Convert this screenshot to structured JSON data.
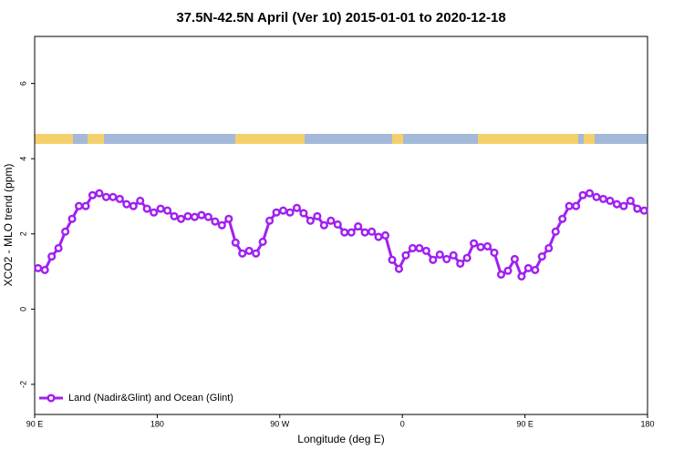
{
  "chart_data": {
    "type": "line",
    "title": "37.5N-42.5N April (Ver 10)   2015-01-01 to 2020-12-18",
    "x_label": "Longitude (deg E)",
    "y_label": "XCO2 - MLO trend (ppm)",
    "xlim": [
      90,
      540
    ],
    "xticks": [
      {
        "value": 90,
        "label": "90 E"
      },
      {
        "value": 180,
        "label": "180"
      },
      {
        "value": 270,
        "label": "90 W"
      },
      {
        "value": 360,
        "label": "0"
      },
      {
        "value": 450,
        "label": "90 E"
      },
      {
        "value": 540,
        "label": "180"
      }
    ],
    "ylim": [
      -2.8,
      7.25
    ],
    "yticks": [
      -2,
      0,
      2,
      4,
      6
    ],
    "legend": "bottom-left",
    "x": [
      92.5,
      97.5,
      102.5,
      107.5,
      112.5,
      117.5,
      122.5,
      127.5,
      132.5,
      137.5,
      142.5,
      147.5,
      152.5,
      157.5,
      162.5,
      167.5,
      172.5,
      177.5,
      182.5,
      187.5,
      192.5,
      197.5,
      202.5,
      207.5,
      212.5,
      217.5,
      222.5,
      227.5,
      232.5,
      237.5,
      242.5,
      247.5,
      252.5,
      257.5,
      262.5,
      267.5,
      272.5,
      277.5,
      282.5,
      287.5,
      292.5,
      297.5,
      302.5,
      307.5,
      312.5,
      317.5,
      322.5,
      327.5,
      332.5,
      337.5,
      342.5,
      347.5,
      352.5,
      357.5,
      362.5,
      367.5,
      372.5,
      377.5,
      382.5,
      387.5,
      392.5,
      397.5,
      402.5,
      407.5,
      412.5,
      417.5,
      422.5,
      427.5,
      432.5,
      437.5,
      442.5,
      447.5,
      452.5,
      457.5,
      462.5,
      467.5,
      472.5,
      477.5,
      482.5,
      487.5,
      492.5,
      497.5,
      502.5,
      507.5,
      512.5,
      517.5,
      522.5,
      527.5,
      532.5,
      537.5
    ],
    "series": [
      {
        "name": "Land (Nadir&Glint) and Ocean (Glint)",
        "color": "#a020f0",
        "values": [
          1.09,
          1.04,
          1.4,
          1.62,
          2.06,
          2.4,
          2.74,
          2.74,
          3.03,
          3.08,
          2.98,
          2.98,
          2.93,
          2.79,
          2.74,
          2.88,
          2.67,
          2.57,
          2.67,
          2.62,
          2.47,
          2.4,
          2.47,
          2.45,
          2.5,
          2.45,
          2.33,
          2.23,
          2.4,
          1.77,
          1.48,
          1.55,
          1.48,
          1.79,
          2.35,
          2.57,
          2.62,
          2.57,
          2.69,
          2.55,
          2.35,
          2.47,
          2.23,
          2.35,
          2.25,
          2.04,
          2.04,
          2.2,
          2.04,
          2.06,
          1.92,
          1.96,
          1.31,
          1.07,
          1.43,
          1.62,
          1.62,
          1.55,
          1.31,
          1.45,
          1.33,
          1.43,
          1.21,
          1.36,
          1.75,
          1.65,
          1.67,
          1.5,
          0.92,
          1.02,
          1.33,
          0.87,
          1.09,
          1.04,
          1.4,
          1.62,
          2.06,
          2.4,
          2.74,
          2.74,
          3.03,
          3.08,
          2.98,
          2.93,
          2.88,
          2.79,
          2.74,
          2.88,
          2.67,
          2.62
        ]
      }
    ]
  }
}
